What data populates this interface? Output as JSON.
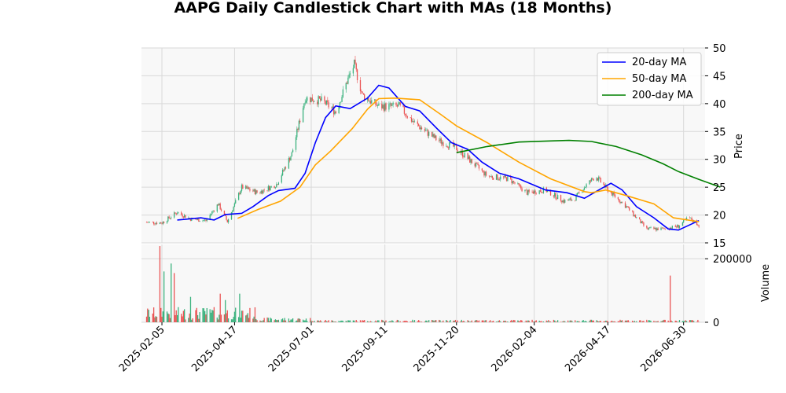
{
  "chart_data": {
    "type": "candlestick",
    "title": "AAPG Daily Candlestick Chart with MAs (18 Months)",
    "colors": {
      "up": "#3bb27e",
      "down": "#ea5454",
      "panel_background": "#f8f8f8",
      "grid": "#d9d9d9",
      "ma20": "#0000ff",
      "ma50": "#ffa500",
      "ma200": "#008000"
    },
    "price_panel": {
      "ylabel": "Price",
      "ylim": [
        15,
        50
      ],
      "yticks": [
        15,
        20,
        25,
        30,
        35,
        40,
        45,
        50
      ],
      "grid": true
    },
    "volume_panel": {
      "ylabel": "Volume",
      "ylim": [
        0,
        245000
      ],
      "yticks": [
        0,
        200000
      ],
      "grid": true
    },
    "x_axis": {
      "start": "2025-01-21",
      "end": "2026-07-15",
      "tick_labels": [
        "2025-02-05",
        "2025-04-17",
        "2025-07-01",
        "2025-09-11",
        "2025-11-20",
        "2026-02-04",
        "2026-04-17",
        "2026-06-30"
      ]
    },
    "legend": {
      "position": "upper-right",
      "entries": [
        "20-day MA",
        "50-day MA",
        "200-day MA"
      ]
    },
    "price_path": [
      [
        "2025-01-21",
        18.7
      ],
      [
        "2025-02-05",
        18.6
      ],
      [
        "2025-02-20",
        20.5
      ],
      [
        "2025-03-05",
        19.3
      ],
      [
        "2025-03-20",
        19.0
      ],
      [
        "2025-04-01",
        22.0
      ],
      [
        "2025-04-10",
        18.8
      ],
      [
        "2025-04-24",
        25.0
      ],
      [
        "2025-05-10",
        24.0
      ],
      [
        "2025-05-28",
        25.5
      ],
      [
        "2025-06-12",
        31.0
      ],
      [
        "2025-06-25",
        41.0
      ],
      [
        "2025-07-12",
        40.5
      ],
      [
        "2025-07-25",
        38.5
      ],
      [
        "2025-08-05",
        44.0
      ],
      [
        "2025-08-12",
        47.0
      ],
      [
        "2025-08-20",
        41.5
      ],
      [
        "2025-09-05",
        39.5
      ],
      [
        "2025-09-25",
        39.5
      ],
      [
        "2025-10-10",
        36.5
      ],
      [
        "2025-11-01",
        33.5
      ],
      [
        "2025-11-20",
        32.0
      ],
      [
        "2025-12-05",
        29.5
      ],
      [
        "2025-12-20",
        27.0
      ],
      [
        "2026-01-10",
        26.5
      ],
      [
        "2026-01-28",
        24.0
      ],
      [
        "2026-02-15",
        24.5
      ],
      [
        "2026-03-05",
        22.5
      ],
      [
        "2026-03-15",
        22.8
      ],
      [
        "2026-03-25",
        25.0
      ],
      [
        "2026-04-05",
        27.0
      ],
      [
        "2026-04-17",
        24.5
      ],
      [
        "2026-05-05",
        21.5
      ],
      [
        "2026-05-25",
        17.5
      ],
      [
        "2026-06-10",
        17.5
      ],
      [
        "2026-06-25",
        18.0
      ],
      [
        "2026-07-05",
        19.5
      ],
      [
        "2026-07-15",
        18.2
      ]
    ],
    "volume_spikes": [
      [
        "2025-02-02",
        215000,
        "down"
      ],
      [
        "2025-02-03",
        240000,
        "down"
      ],
      [
        "2025-02-07",
        160000,
        "up"
      ],
      [
        "2025-02-09",
        205000,
        "up"
      ],
      [
        "2025-02-14",
        185000,
        "up"
      ],
      [
        "2025-02-17",
        155000,
        "down"
      ],
      [
        "2025-02-22",
        90000,
        "up"
      ],
      [
        "2025-03-05",
        80000,
        "up"
      ],
      [
        "2025-04-03",
        90000,
        "down"
      ],
      [
        "2025-04-05",
        145000,
        "down"
      ],
      [
        "2025-04-08",
        70000,
        "up"
      ],
      [
        "2025-04-22",
        90000,
        "up"
      ],
      [
        "2026-06-17",
        147000,
        "down"
      ]
    ],
    "ma20": [
      [
        "2025-02-20",
        19.1
      ],
      [
        "2025-03-15",
        19.5
      ],
      [
        "2025-03-28",
        19.1
      ],
      [
        "2025-04-08",
        20.1
      ],
      [
        "2025-04-24",
        20.3
      ],
      [
        "2025-05-05",
        21.5
      ],
      [
        "2025-05-20",
        23.5
      ],
      [
        "2025-05-30",
        24.4
      ],
      [
        "2025-06-15",
        24.8
      ],
      [
        "2025-06-25",
        27.5
      ],
      [
        "2025-07-05",
        33.0
      ],
      [
        "2025-07-15",
        37.5
      ],
      [
        "2025-07-25",
        39.6
      ],
      [
        "2025-08-08",
        39.1
      ],
      [
        "2025-08-25",
        41.0
      ],
      [
        "2025-09-05",
        43.3
      ],
      [
        "2025-09-15",
        42.8
      ],
      [
        "2025-10-01",
        39.5
      ],
      [
        "2025-10-15",
        38.7
      ],
      [
        "2025-11-01",
        35.5
      ],
      [
        "2025-11-15",
        33.0
      ],
      [
        "2025-12-01",
        31.8
      ],
      [
        "2025-12-15",
        29.5
      ],
      [
        "2026-01-01",
        27.5
      ],
      [
        "2026-01-20",
        26.5
      ],
      [
        "2026-02-15",
        24.5
      ],
      [
        "2026-03-08",
        24.0
      ],
      [
        "2026-03-25",
        23.0
      ],
      [
        "2026-04-10",
        24.7
      ],
      [
        "2026-04-20",
        25.7
      ],
      [
        "2026-05-01",
        24.5
      ],
      [
        "2026-05-15",
        21.5
      ],
      [
        "2026-06-01",
        19.5
      ],
      [
        "2026-06-15",
        17.5
      ],
      [
        "2026-06-25",
        17.3
      ],
      [
        "2026-07-15",
        19.0
      ]
    ],
    "ma50": [
      [
        "2025-04-20",
        19.4
      ],
      [
        "2025-05-10",
        21.0
      ],
      [
        "2025-06-01",
        22.5
      ],
      [
        "2025-06-20",
        25.0
      ],
      [
        "2025-07-05",
        29.0
      ],
      [
        "2025-07-20",
        31.5
      ],
      [
        "2025-08-10",
        35.5
      ],
      [
        "2025-08-25",
        39.0
      ],
      [
        "2025-09-05",
        40.9
      ],
      [
        "2025-09-20",
        41.0
      ],
      [
        "2025-10-15",
        40.7
      ],
      [
        "2025-11-05",
        38.0
      ],
      [
        "2025-11-20",
        36.0
      ],
      [
        "2025-12-20",
        33.0
      ],
      [
        "2026-01-20",
        29.5
      ],
      [
        "2026-02-20",
        26.5
      ],
      [
        "2026-03-25",
        24.2
      ],
      [
        "2026-04-01",
        24.0
      ],
      [
        "2026-04-15",
        24.5
      ],
      [
        "2026-05-05",
        23.5
      ],
      [
        "2026-06-01",
        22.0
      ],
      [
        "2026-06-20",
        19.5
      ],
      [
        "2026-07-15",
        18.8
      ]
    ],
    "ma200": [
      [
        "2025-11-20",
        31.2
      ],
      [
        "2025-12-20",
        32.3
      ],
      [
        "2026-01-20",
        33.1
      ],
      [
        "2026-02-20",
        33.3
      ],
      [
        "2026-03-10",
        33.4
      ],
      [
        "2026-04-01",
        33.2
      ],
      [
        "2026-04-25",
        32.3
      ],
      [
        "2026-05-20",
        30.8
      ],
      [
        "2026-06-10",
        29.2
      ],
      [
        "2026-06-25",
        27.8
      ],
      [
        "2026-07-15",
        26.4
      ],
      [
        "2026-08-05",
        25.0
      ]
    ]
  }
}
